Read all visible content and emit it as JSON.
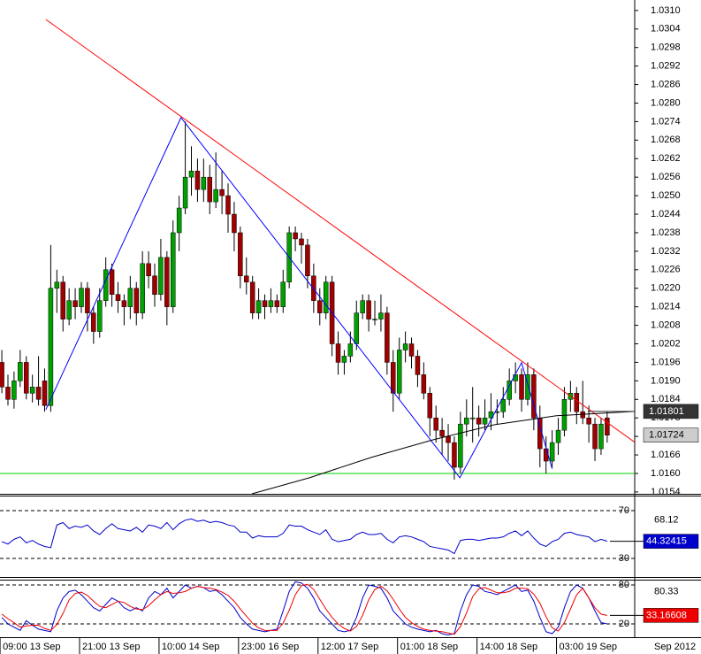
{
  "chart_data": [
    {
      "type": "candlestick",
      "up_color": "#00a000",
      "down_color": "#a00000",
      "xlim": [
        -0.3,
        103.5
      ],
      "ylim": [
        1.01534,
        1.03134
      ],
      "xticks": [
        {
          "value": 0,
          "label": "09:00 13 Sep"
        },
        {
          "value": 13,
          "label": "21:00 13 Sep"
        },
        {
          "value": 26,
          "label": "10:00 14 Sep"
        },
        {
          "value": 39,
          "label": "23:00 16 Sep"
        },
        {
          "value": 52,
          "label": "12:00 17 Sep"
        },
        {
          "value": 65,
          "label": "01:00 18 Sep"
        },
        {
          "value": 78,
          "label": "14:00 18 Sep"
        },
        {
          "value": 91,
          "label": "03:00 19 Sep"
        }
      ],
      "period_label": "Sep 2012",
      "yticks": [
        {
          "value": 1.031,
          "label": "1.0310"
        },
        1.0304,
        1.0298,
        1.0292,
        1.0286,
        {
          "value": 1.028,
          "label": "1.0280"
        },
        1.0274,
        1.0268,
        1.0262,
        1.0256,
        {
          "value": 1.025,
          "label": "1.0250"
        },
        1.0244,
        1.0238,
        1.0232,
        1.0226,
        {
          "value": 1.022,
          "label": "1.0220"
        },
        1.0214,
        1.0208,
        1.0202,
        1.0196,
        {
          "value": 1.019,
          "label": "1.0190"
        },
        1.0184,
        1.0178,
        1.0172,
        1.0166,
        {
          "value": 1.016,
          "label": "1.0160"
        },
        1.0154
      ],
      "ohlc": [
        [
          1.0196,
          1.02,
          1.0186,
          1.0188
        ],
        [
          1.0188,
          1.0192,
          1.0182,
          1.0184
        ],
        [
          1.0184,
          1.0193,
          1.0181,
          1.019
        ],
        [
          1.019,
          1.02,
          1.0188,
          1.0196
        ],
        [
          1.0196,
          1.0198,
          1.0184,
          1.0186
        ],
        [
          1.0186,
          1.0192,
          1.0183,
          1.0188
        ],
        [
          1.0188,
          1.0198,
          1.0182,
          1.0184
        ],
        [
          1.019,
          1.0194,
          1.018,
          1.0182
        ],
        [
          1.0182,
          1.0234,
          1.018,
          1.022
        ],
        [
          1.022,
          1.0226,
          1.0212,
          1.0222
        ],
        [
          1.0222,
          1.0224,
          1.0206,
          1.021
        ],
        [
          1.021,
          1.022,
          1.0208,
          1.0216
        ],
        [
          1.0216,
          1.022,
          1.021,
          1.0214
        ],
        [
          1.0214,
          1.0222,
          1.0212,
          1.022
        ],
        [
          1.022,
          1.0222,
          1.0206,
          1.0212
        ],
        [
          1.0212,
          1.0214,
          1.0202,
          1.0206
        ],
        [
          1.0206,
          1.022,
          1.0204,
          1.0216
        ],
        [
          1.0216,
          1.023,
          1.0214,
          1.0226
        ],
        [
          1.0226,
          1.0228,
          1.0214,
          1.0218
        ],
        [
          1.0218,
          1.0222,
          1.0212,
          1.0216
        ],
        [
          1.0216,
          1.0218,
          1.0208,
          1.0214
        ],
        [
          1.0214,
          1.0224,
          1.021,
          1.022
        ],
        [
          1.022,
          1.0222,
          1.0208,
          1.0212
        ],
        [
          1.0212,
          1.0232,
          1.021,
          1.0228
        ],
        [
          1.0228,
          1.0232,
          1.022,
          1.0224
        ],
        [
          1.0224,
          1.0228,
          1.0214,
          1.0218
        ],
        [
          1.0218,
          1.0236,
          1.0216,
          1.023
        ],
        [
          1.023,
          1.0232,
          1.0208,
          1.0214
        ],
        [
          1.0214,
          1.0242,
          1.0212,
          1.0238
        ],
        [
          1.0238,
          1.025,
          1.0232,
          1.0246
        ],
        [
          1.0246,
          1.0274,
          1.0244,
          1.0256
        ],
        [
          1.0256,
          1.0266,
          1.025,
          1.0258
        ],
        [
          1.0258,
          1.0262,
          1.0248,
          1.0252
        ],
        [
          1.0252,
          1.0262,
          1.0248,
          1.0256
        ],
        [
          1.0256,
          1.026,
          1.0244,
          1.0248
        ],
        [
          1.0248,
          1.0264,
          1.0246,
          1.0252
        ],
        [
          1.0252,
          1.0258,
          1.0244,
          1.025
        ],
        [
          1.025,
          1.0254,
          1.0238,
          1.0244
        ],
        [
          1.0244,
          1.0248,
          1.0232,
          1.0238
        ],
        [
          1.0238,
          1.024,
          1.022,
          1.0224
        ],
        [
          1.0224,
          1.023,
          1.0218,
          1.0222
        ],
        [
          1.0222,
          1.0224,
          1.021,
          1.0212
        ],
        [
          1.0212,
          1.022,
          1.021,
          1.0216
        ],
        [
          1.0216,
          1.0218,
          1.021,
          1.0214
        ],
        [
          1.0214,
          1.022,
          1.0212,
          1.0216
        ],
        [
          1.0216,
          1.0218,
          1.0212,
          1.0214
        ],
        [
          1.0214,
          1.0226,
          1.0212,
          1.0222
        ],
        [
          1.0222,
          1.024,
          1.022,
          1.0238
        ],
        [
          1.0238,
          1.024,
          1.0232,
          1.0236
        ],
        [
          1.0236,
          1.0238,
          1.0228,
          1.0234
        ],
        [
          1.0234,
          1.0236,
          1.022,
          1.0224
        ],
        [
          1.0224,
          1.0228,
          1.0212,
          1.0216
        ],
        [
          1.0216,
          1.022,
          1.0208,
          1.0212
        ],
        [
          1.0212,
          1.0224,
          1.021,
          1.0222
        ],
        [
          1.0222,
          1.0224,
          1.0198,
          1.0202
        ],
        [
          1.0202,
          1.0206,
          1.0192,
          1.0196
        ],
        [
          1.0196,
          1.02,
          1.0192,
          1.0198
        ],
        [
          1.0198,
          1.0206,
          1.0196,
          1.0202
        ],
        [
          1.0202,
          1.0216,
          1.02,
          1.0212
        ],
        [
          1.0212,
          1.0218,
          1.021,
          1.0216
        ],
        [
          1.0216,
          1.0218,
          1.0206,
          1.021
        ],
        [
          1.021,
          1.0216,
          1.0208,
          1.021
        ],
        [
          1.021,
          1.0218,
          1.0206,
          1.0212
        ],
        [
          1.0212,
          1.0214,
          1.0192,
          1.0196
        ],
        [
          1.0196,
          1.02,
          1.018,
          1.0186
        ],
        [
          1.0186,
          1.0204,
          1.0184,
          1.02
        ],
        [
          1.02,
          1.0206,
          1.0196,
          1.0202
        ],
        [
          1.0202,
          1.0204,
          1.0194,
          1.0198
        ],
        [
          1.0198,
          1.02,
          1.0188,
          1.0192
        ],
        [
          1.0192,
          1.0196,
          1.0184,
          1.0186
        ],
        [
          1.0186,
          1.0188,
          1.0172,
          1.0178
        ],
        [
          1.0178,
          1.0182,
          1.017,
          1.0174
        ],
        [
          1.0174,
          1.0178,
          1.0166,
          1.0172
        ],
        [
          1.0172,
          1.0176,
          1.0164,
          1.017
        ],
        [
          1.017,
          1.0172,
          1.0158,
          1.0162
        ],
        [
          1.0162,
          1.018,
          1.016,
          1.0176
        ],
        [
          1.0176,
          1.0184,
          1.0172,
          1.0178
        ],
        [
          1.0178,
          1.0188,
          1.017,
          1.0178
        ],
        [
          1.0178,
          1.0182,
          1.0172,
          1.0176
        ],
        [
          1.0176,
          1.0184,
          1.0174,
          1.0178
        ],
        [
          1.0178,
          1.0186,
          1.0174,
          1.018
        ],
        [
          1.018,
          1.0184,
          1.0176,
          1.018
        ],
        [
          1.018,
          1.0188,
          1.0178,
          1.0184
        ],
        [
          1.0184,
          1.0194,
          1.0182,
          1.019
        ],
        [
          1.019,
          1.0196,
          1.0186,
          1.0192
        ],
        [
          1.0192,
          1.0194,
          1.018,
          1.0184
        ],
        [
          1.0184,
          1.0196,
          1.0182,
          1.0192
        ],
        [
          1.0192,
          1.0194,
          1.0174,
          1.0178
        ],
        [
          1.0178,
          1.0182,
          1.0162,
          1.0168
        ],
        [
          1.0168,
          1.0172,
          1.016,
          1.0164
        ],
        [
          1.0164,
          1.0174,
          1.0162,
          1.017
        ],
        [
          1.017,
          1.0178,
          1.0166,
          1.0174
        ],
        [
          1.0174,
          1.0188,
          1.0172,
          1.0184
        ],
        [
          1.0184,
          1.019,
          1.018,
          1.0186
        ],
        [
          1.0186,
          1.0188,
          1.0176,
          1.018
        ],
        [
          1.018,
          1.019,
          1.0176,
          1.0178
        ],
        [
          1.0178,
          1.0182,
          1.017,
          1.0176
        ],
        [
          1.0176,
          1.0178,
          1.0164,
          1.0168
        ],
        [
          1.0168,
          1.0178,
          1.0166,
          1.0176
        ],
        [
          1.0178,
          1.018,
          1.017,
          1.01724
        ]
      ],
      "overlays": [
        {
          "color": "#ff0000",
          "x": [
            7.2,
            103.5
          ],
          "y": [
            1.03071,
            1.01701
          ]
        },
        {
          "color": "#0000ff",
          "x": [
            7.2,
            29.3,
            74.9,
            85,
            90
          ],
          "y": [
            1.01807,
            1.02753,
            1.01586,
            1.01959,
            1.01615
          ]
        },
        {
          "color": "#000000",
          "x": [
            40.9,
            50.3,
            60.4,
            70.5,
            80.6,
            90.7,
            103.5
          ],
          "y": [
            1.01534,
            1.01586,
            1.01652,
            1.01709,
            1.01758,
            1.01787,
            1.01801
          ]
        }
      ],
      "levels": [
        {
          "value": 1.016,
          "color": "#00cc00"
        }
      ],
      "price_labels": [
        {
          "value": 1.01801,
          "label": "1.01801",
          "color": "#333333",
          "text_color": "#ffffff"
        },
        {
          "value": 1.01724,
          "label": "1.01724",
          "color": "#cccccc",
          "text_color": "#000000"
        }
      ]
    },
    {
      "type": "line",
      "ylim": [
        14.4,
        82.6
      ],
      "yticks": [
        30,
        70
      ],
      "series": [
        {
          "color": "#0000cc",
          "values": [
            44,
            42,
            46,
            48,
            43,
            45,
            42,
            40,
            39,
            58,
            60,
            55,
            57,
            56,
            58,
            53,
            50,
            55,
            59,
            55,
            54,
            53,
            56,
            52,
            58,
            57,
            55,
            60,
            54,
            59,
            62,
            63,
            61,
            62,
            60,
            61,
            60,
            58,
            57,
            52,
            52,
            47,
            49,
            48,
            48,
            48,
            51,
            58,
            57,
            57,
            54,
            52,
            50,
            54,
            46,
            44,
            45,
            46,
            50,
            52,
            50,
            50,
            51,
            46,
            43,
            48,
            49,
            48,
            46,
            44,
            40,
            39,
            38,
            37,
            34,
            45,
            46,
            46,
            45,
            46,
            47,
            47,
            48,
            51,
            53,
            49,
            53,
            47,
            42,
            40,
            44,
            46,
            51,
            52,
            50,
            49,
            48,
            44,
            46,
            44.32415
          ]
        }
      ],
      "markers": [
        {
          "value": 68.12,
          "label": "68.12"
        },
        {
          "value": 44.32415,
          "label": "44.32415",
          "color": "#0000cc",
          "text_color": "#ffffff"
        }
      ]
    },
    {
      "type": "line",
      "ylim": [
        -0.45,
        88.2
      ],
      "yticks": [
        20,
        80
      ],
      "series": [
        {
          "color": "#0000cc",
          "values": [
            30,
            20,
            15,
            10,
            25,
            18,
            12,
            10,
            8,
            40,
            60,
            70,
            72,
            65,
            55,
            45,
            40,
            50,
            60,
            55,
            45,
            40,
            45,
            40,
            60,
            70,
            65,
            75,
            60,
            70,
            80,
            75,
            78,
            76,
            70,
            72,
            65,
            55,
            45,
            30,
            20,
            12,
            10,
            8,
            10,
            12,
            40,
            70,
            85,
            83,
            75,
            60,
            40,
            30,
            20,
            10,
            8,
            10,
            30,
            60,
            80,
            78,
            75,
            60,
            40,
            30,
            20,
            15,
            12,
            10,
            8,
            10,
            5,
            3,
            5,
            40,
            65,
            80,
            78,
            70,
            68,
            65,
            70,
            75,
            80,
            70,
            72,
            55,
            30,
            8,
            5,
            15,
            45,
            70,
            80,
            75,
            60,
            40,
            22,
            20
          ]
        },
        {
          "color": "#ee0000",
          "values": [
            35,
            28,
            22,
            15,
            17,
            18,
            18,
            13,
            10,
            19,
            36,
            57,
            67,
            69,
            64,
            55,
            47,
            45,
            50,
            55,
            53,
            47,
            43,
            42,
            48,
            57,
            65,
            70,
            67,
            68,
            70,
            75,
            78,
            76,
            75,
            73,
            69,
            64,
            55,
            43,
            32,
            21,
            14,
            10,
            10,
            10,
            21,
            41,
            65,
            79,
            81,
            73,
            58,
            43,
            30,
            20,
            13,
            9,
            16,
            33,
            57,
            73,
            78,
            71,
            58,
            43,
            30,
            22,
            16,
            12,
            10,
            9,
            8,
            6,
            4,
            16,
            37,
            62,
            74,
            76,
            72,
            68,
            68,
            70,
            75,
            75,
            74,
            66,
            52,
            31,
            14,
            9,
            22,
            43,
            65,
            75,
            60,
            45,
            35,
            33.16608
          ]
        }
      ],
      "markers": [
        {
          "value": 80.33,
          "label": "80.33"
        },
        {
          "value": 33.16608,
          "label": "33.16608",
          "color": "#ee0000",
          "text_color": "#ffffff"
        }
      ]
    }
  ]
}
